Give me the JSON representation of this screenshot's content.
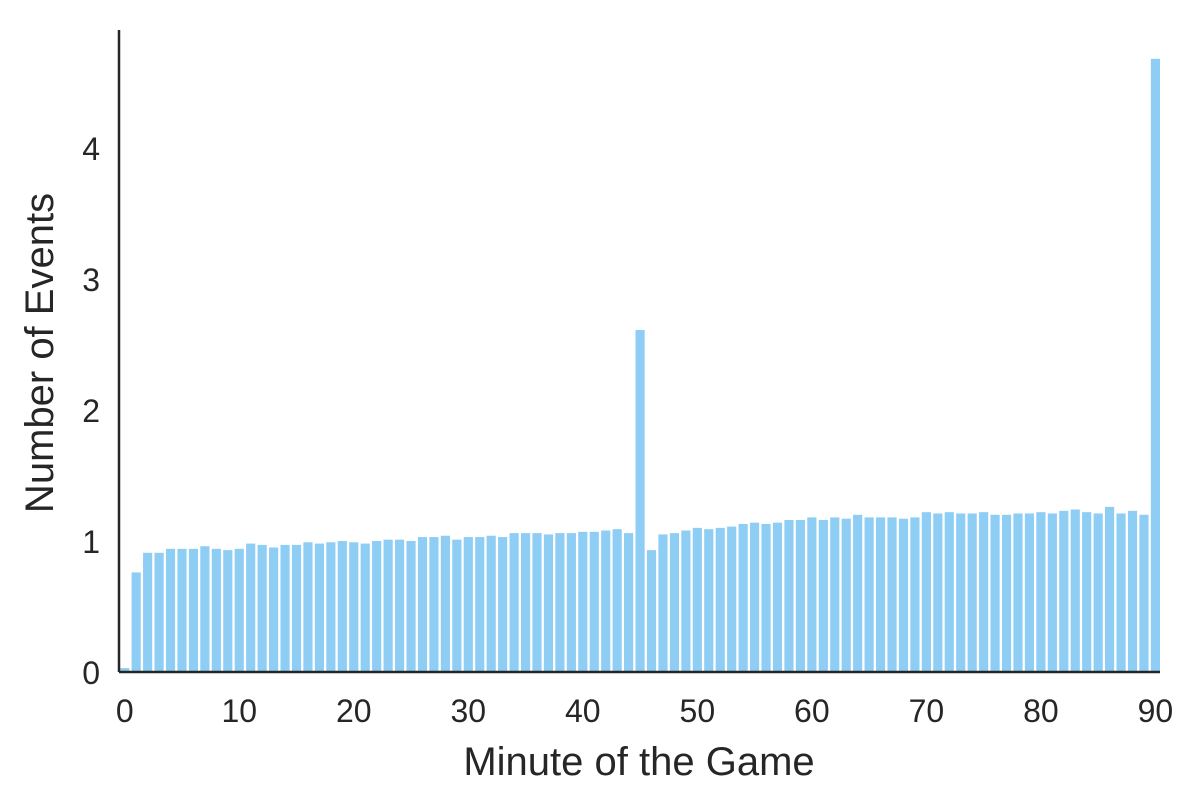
{
  "chart_data": {
    "type": "bar",
    "title": "",
    "xlabel": "Minute of the Game",
    "ylabel": "Number of Events",
    "xlim": [
      -0.5,
      90.4
    ],
    "ylim": [
      0,
      4.9
    ],
    "grid": false,
    "legend": "none",
    "x_ticks": [
      0,
      10,
      20,
      30,
      40,
      50,
      60,
      70,
      80,
      90
    ],
    "y_ticks": [
      0,
      1,
      2,
      3,
      4
    ],
    "bar_color": "#8ecdf4",
    "axis_color": "#262626",
    "x": [
      0,
      1,
      2,
      3,
      4,
      5,
      6,
      7,
      8,
      9,
      10,
      11,
      12,
      13,
      14,
      15,
      16,
      17,
      18,
      19,
      20,
      21,
      22,
      23,
      24,
      25,
      26,
      27,
      28,
      29,
      30,
      31,
      32,
      33,
      34,
      35,
      36,
      37,
      38,
      39,
      40,
      41,
      42,
      43,
      44,
      45,
      46,
      47,
      48,
      49,
      50,
      51,
      52,
      53,
      54,
      55,
      56,
      57,
      58,
      59,
      60,
      61,
      62,
      63,
      64,
      65,
      66,
      67,
      68,
      69,
      70,
      71,
      72,
      73,
      74,
      75,
      76,
      77,
      78,
      79,
      80,
      81,
      82,
      83,
      84,
      85,
      86,
      87,
      88,
      89,
      90
    ],
    "values": [
      0.03,
      0.76,
      0.91,
      0.91,
      0.94,
      0.94,
      0.94,
      0.96,
      0.94,
      0.93,
      0.94,
      0.98,
      0.97,
      0.95,
      0.97,
      0.97,
      0.99,
      0.98,
      0.99,
      1.0,
      0.99,
      0.98,
      1.0,
      1.01,
      1.01,
      1.0,
      1.03,
      1.03,
      1.04,
      1.01,
      1.03,
      1.03,
      1.04,
      1.03,
      1.06,
      1.06,
      1.06,
      1.05,
      1.06,
      1.06,
      1.07,
      1.07,
      1.08,
      1.09,
      1.06,
      2.61,
      0.93,
      1.05,
      1.06,
      1.08,
      1.1,
      1.09,
      1.1,
      1.11,
      1.13,
      1.14,
      1.13,
      1.14,
      1.16,
      1.16,
      1.18,
      1.16,
      1.18,
      1.17,
      1.2,
      1.18,
      1.18,
      1.18,
      1.17,
      1.18,
      1.22,
      1.21,
      1.22,
      1.21,
      1.21,
      1.22,
      1.2,
      1.2,
      1.21,
      1.21,
      1.22,
      1.21,
      1.23,
      1.24,
      1.22,
      1.21,
      1.26,
      1.21,
      1.23,
      1.2,
      4.68
    ]
  }
}
